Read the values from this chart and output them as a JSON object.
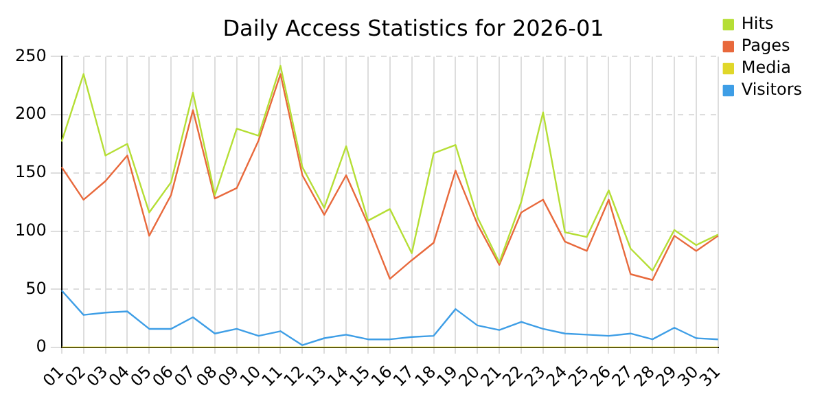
{
  "chart_data": {
    "type": "line",
    "title": "Daily Access Statistics for 2026-01",
    "categories": [
      "01",
      "02",
      "03",
      "04",
      "05",
      "06",
      "07",
      "08",
      "09",
      "10",
      "11",
      "12",
      "13",
      "14",
      "15",
      "16",
      "17",
      "18",
      "19",
      "20",
      "21",
      "22",
      "23",
      "24",
      "25",
      "26",
      "27",
      "28",
      "29",
      "30",
      "31"
    ],
    "series": [
      {
        "name": "Hits",
        "color": "#b5de35",
        "values": [
          177,
          235,
          165,
          175,
          116,
          142,
          219,
          131,
          188,
          182,
          242,
          155,
          120,
          173,
          109,
          119,
          81,
          167,
          174,
          112,
          73,
          125,
          202,
          99,
          95,
          135,
          85,
          66,
          101,
          88,
          97
        ]
      },
      {
        "name": "Pages",
        "color": "#e8693c",
        "values": [
          155,
          127,
          143,
          165,
          96,
          131,
          204,
          128,
          137,
          178,
          235,
          148,
          114,
          148,
          106,
          59,
          75,
          90,
          152,
          106,
          71,
          116,
          127,
          91,
          83,
          127,
          63,
          58,
          96,
          83,
          96
        ]
      },
      {
        "name": "Media",
        "color": "#e0d72a",
        "values": [
          0,
          0,
          0,
          0,
          0,
          0,
          0,
          0,
          0,
          0,
          0,
          0,
          0,
          0,
          0,
          0,
          0,
          0,
          0,
          0,
          0,
          0,
          0,
          0,
          0,
          0,
          0,
          0,
          0,
          0,
          0
        ]
      },
      {
        "name": "Visitors",
        "color": "#3e9ee6",
        "values": [
          49,
          28,
          30,
          31,
          16,
          16,
          26,
          12,
          16,
          10,
          14,
          2,
          8,
          11,
          7,
          7,
          9,
          10,
          33,
          19,
          15,
          22,
          16,
          12,
          11,
          10,
          12,
          7,
          17,
          8,
          7
        ]
      }
    ],
    "ylim": [
      0,
      250
    ],
    "yticks": [
      0,
      50,
      100,
      150,
      200,
      250
    ],
    "grid": true,
    "legend": "top right",
    "marker": "none",
    "line_style": "solid"
  }
}
